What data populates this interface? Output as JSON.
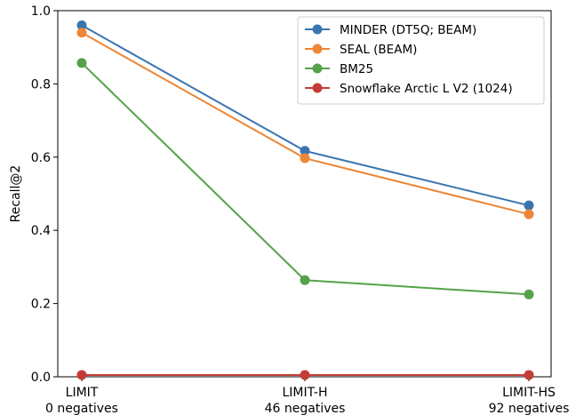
{
  "chart_data": {
    "type": "line",
    "title": "",
    "xlabel": "",
    "ylabel": "Recall@2",
    "ylim": [
      0.0,
      1.0
    ],
    "yticks": [
      "0.0",
      "0.2",
      "0.4",
      "0.6",
      "0.8",
      "1.0"
    ],
    "grid": false,
    "legend_position": "top-right",
    "categories": [
      {
        "name": "LIMIT",
        "sub": "0 negatives"
      },
      {
        "name": "LIMIT-H",
        "sub": "46 negatives"
      },
      {
        "name": "LIMIT-HS",
        "sub": "92 negatives"
      }
    ],
    "series": [
      {
        "name": "MINDER (DT5Q; BEAM)",
        "color": "#3a75b0",
        "values": [
          0.96,
          0.617,
          0.468
        ]
      },
      {
        "name": "SEAL (BEAM)",
        "color": "#ee8636",
        "values": [
          0.94,
          0.597,
          0.444
        ]
      },
      {
        "name": "BM25",
        "color": "#55a24a",
        "values": [
          0.857,
          0.264,
          0.225
        ]
      },
      {
        "name": "Snowflake Arctic L V2 (1024)",
        "color": "#c33c36",
        "values": [
          0.005,
          0.005,
          0.005
        ]
      }
    ]
  }
}
